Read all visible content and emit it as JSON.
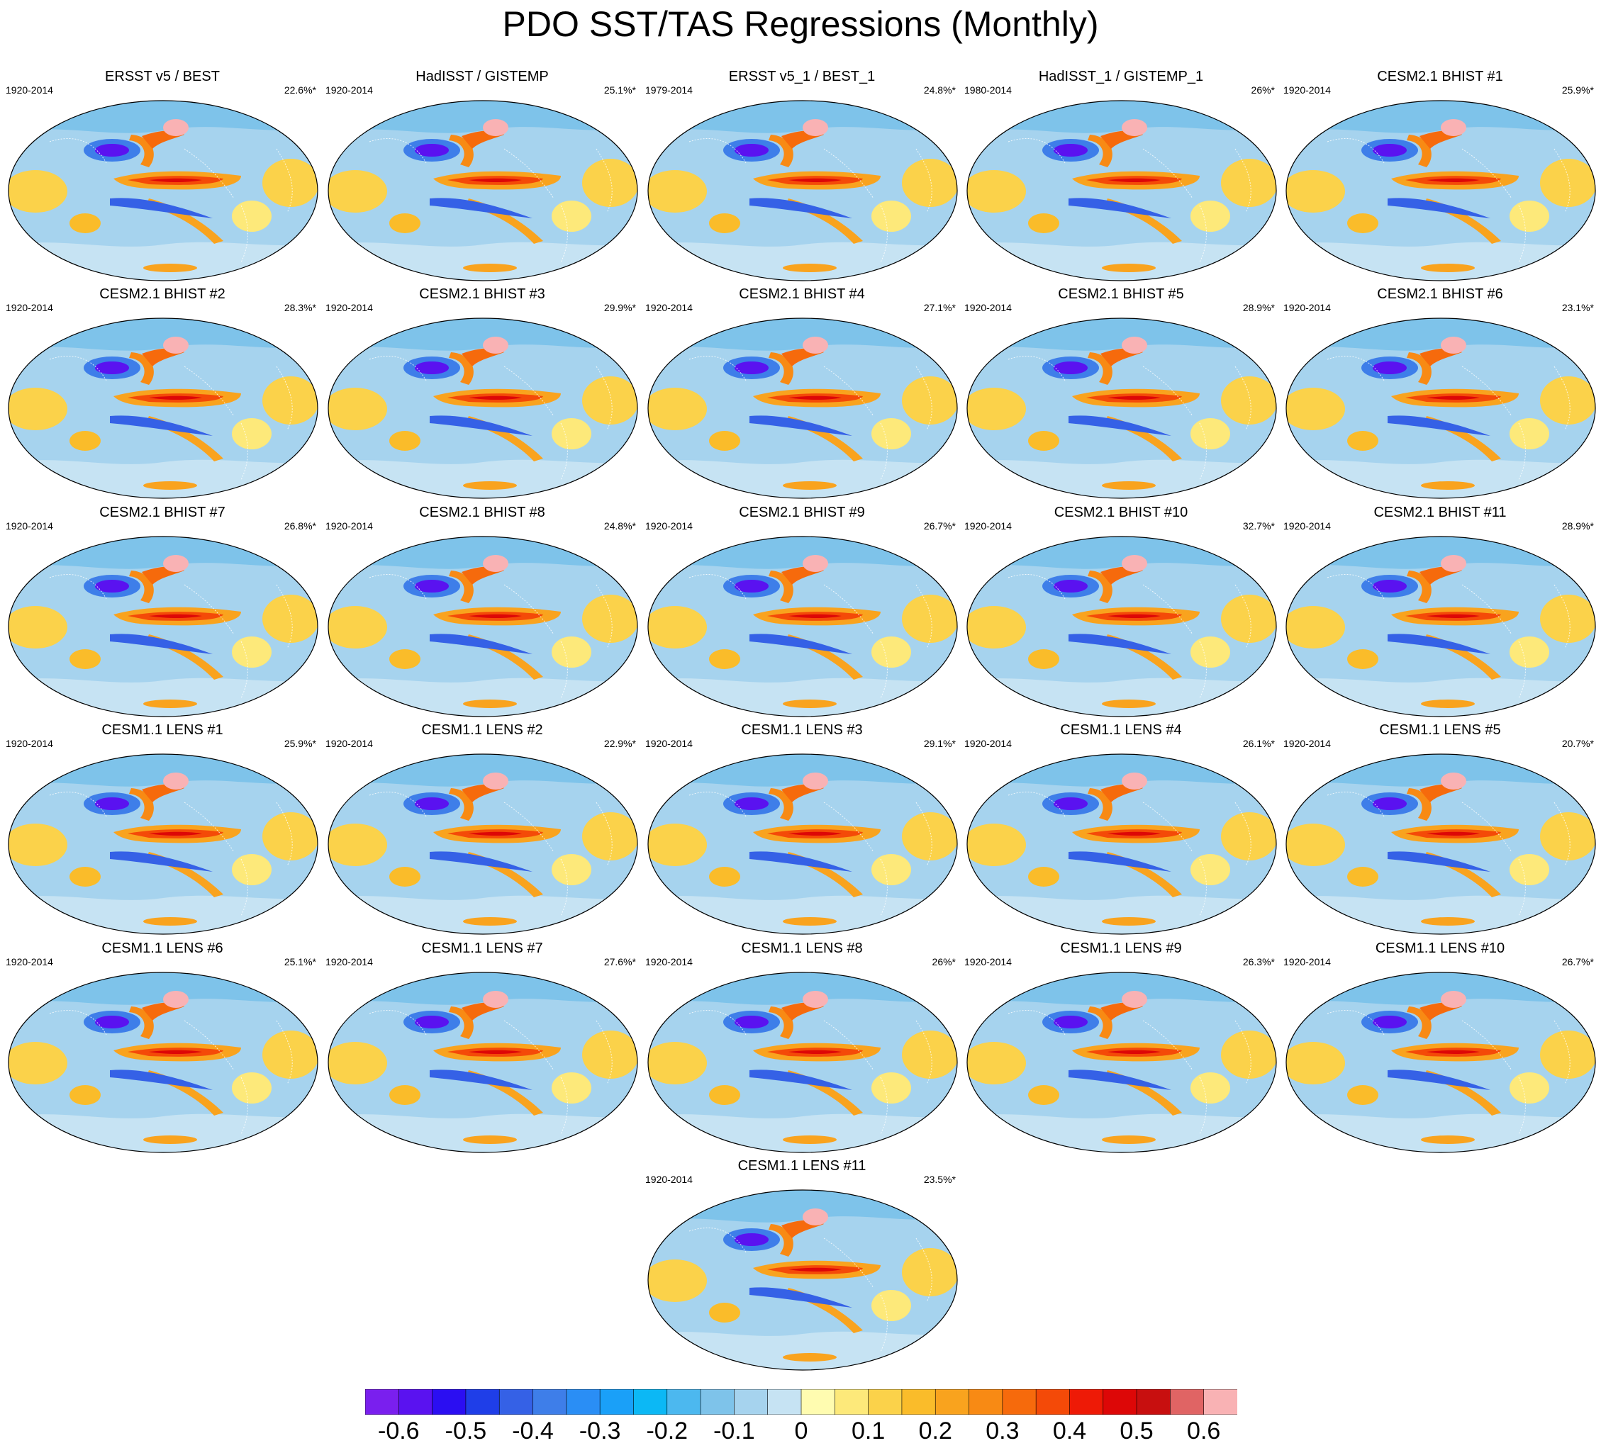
{
  "title": "PDO SST/TAS Regressions (Monthly)",
  "panels": [
    {
      "title": "ERSST v5 / BEST",
      "period": "1920-2014",
      "pct": "22.6%*"
    },
    {
      "title": "HadISST / GISTEMP",
      "period": "1920-2014",
      "pct": "25.1%*"
    },
    {
      "title": "ERSST v5_1 / BEST_1",
      "period": "1979-2014",
      "pct": "24.8%*"
    },
    {
      "title": "HadISST_1 / GISTEMP_1",
      "period": "1980-2014",
      "pct": "26%*"
    },
    {
      "title": "CESM2.1 BHIST #1",
      "period": "1920-2014",
      "pct": "25.9%*"
    },
    {
      "title": "CESM2.1 BHIST #2",
      "period": "1920-2014",
      "pct": "28.3%*"
    },
    {
      "title": "CESM2.1 BHIST #3",
      "period": "1920-2014",
      "pct": "29.9%*"
    },
    {
      "title": "CESM2.1 BHIST #4",
      "period": "1920-2014",
      "pct": "27.1%*"
    },
    {
      "title": "CESM2.1 BHIST #5",
      "period": "1920-2014",
      "pct": "28.9%*"
    },
    {
      "title": "CESM2.1 BHIST #6",
      "period": "1920-2014",
      "pct": "23.1%*"
    },
    {
      "title": "CESM2.1 BHIST #7",
      "period": "1920-2014",
      "pct": "26.8%*"
    },
    {
      "title": "CESM2.1 BHIST #8",
      "period": "1920-2014",
      "pct": "24.8%*"
    },
    {
      "title": "CESM2.1 BHIST #9",
      "period": "1920-2014",
      "pct": "26.7%*"
    },
    {
      "title": "CESM2.1 BHIST #10",
      "period": "1920-2014",
      "pct": "32.7%*"
    },
    {
      "title": "CESM2.1 BHIST #11",
      "period": "1920-2014",
      "pct": "28.9%*"
    },
    {
      "title": "CESM1.1 LENS #1",
      "period": "1920-2014",
      "pct": "25.9%*"
    },
    {
      "title": "CESM1.1 LENS #2",
      "period": "1920-2014",
      "pct": "22.9%*"
    },
    {
      "title": "CESM1.1 LENS #3",
      "period": "1920-2014",
      "pct": "29.1%*"
    },
    {
      "title": "CESM1.1 LENS #4",
      "period": "1920-2014",
      "pct": "26.1%*"
    },
    {
      "title": "CESM1.1 LENS #5",
      "period": "1920-2014",
      "pct": "20.7%*"
    },
    {
      "title": "CESM1.1 LENS #6",
      "period": "1920-2014",
      "pct": "25.1%*"
    },
    {
      "title": "CESM1.1 LENS #7",
      "period": "1920-2014",
      "pct": "27.6%*"
    },
    {
      "title": "CESM1.1 LENS #8",
      "period": "1920-2014",
      "pct": "26%*"
    },
    {
      "title": "CESM1.1 LENS #9",
      "period": "1920-2014",
      "pct": "26.3%*"
    },
    {
      "title": "CESM1.1 LENS #10",
      "period": "1920-2014",
      "pct": "26.7%*"
    },
    {
      "title": "CESM1.1 LENS #11",
      "period": "1920-2014",
      "pct": "23.5%*"
    }
  ],
  "colorbar": {
    "labels": [
      "-0.6",
      "-0.5",
      "-0.4",
      "-0.3",
      "-0.2",
      "-0.1",
      "0",
      "0.1",
      "0.2",
      "0.3",
      "0.4",
      "0.5",
      "0.6"
    ],
    "colors": [
      "#7a1fee",
      "#5a12f0",
      "#2b0ef2",
      "#1f3ee8",
      "#3561e6",
      "#3e7ee9",
      "#2a8ef5",
      "#1aa0f8",
      "#0cb8f5",
      "#4cb8ef",
      "#7ec3ea",
      "#a6d3ee",
      "#c6e3f3",
      "#fffcb0",
      "#fde97a",
      "#fbd24a",
      "#fabc2a",
      "#f9a31e",
      "#f88a14",
      "#f66a0c",
      "#f44a08",
      "#ee1a06",
      "#dd0707",
      "#c80f0f",
      "#e06464",
      "#f9b2b4"
    ]
  }
}
